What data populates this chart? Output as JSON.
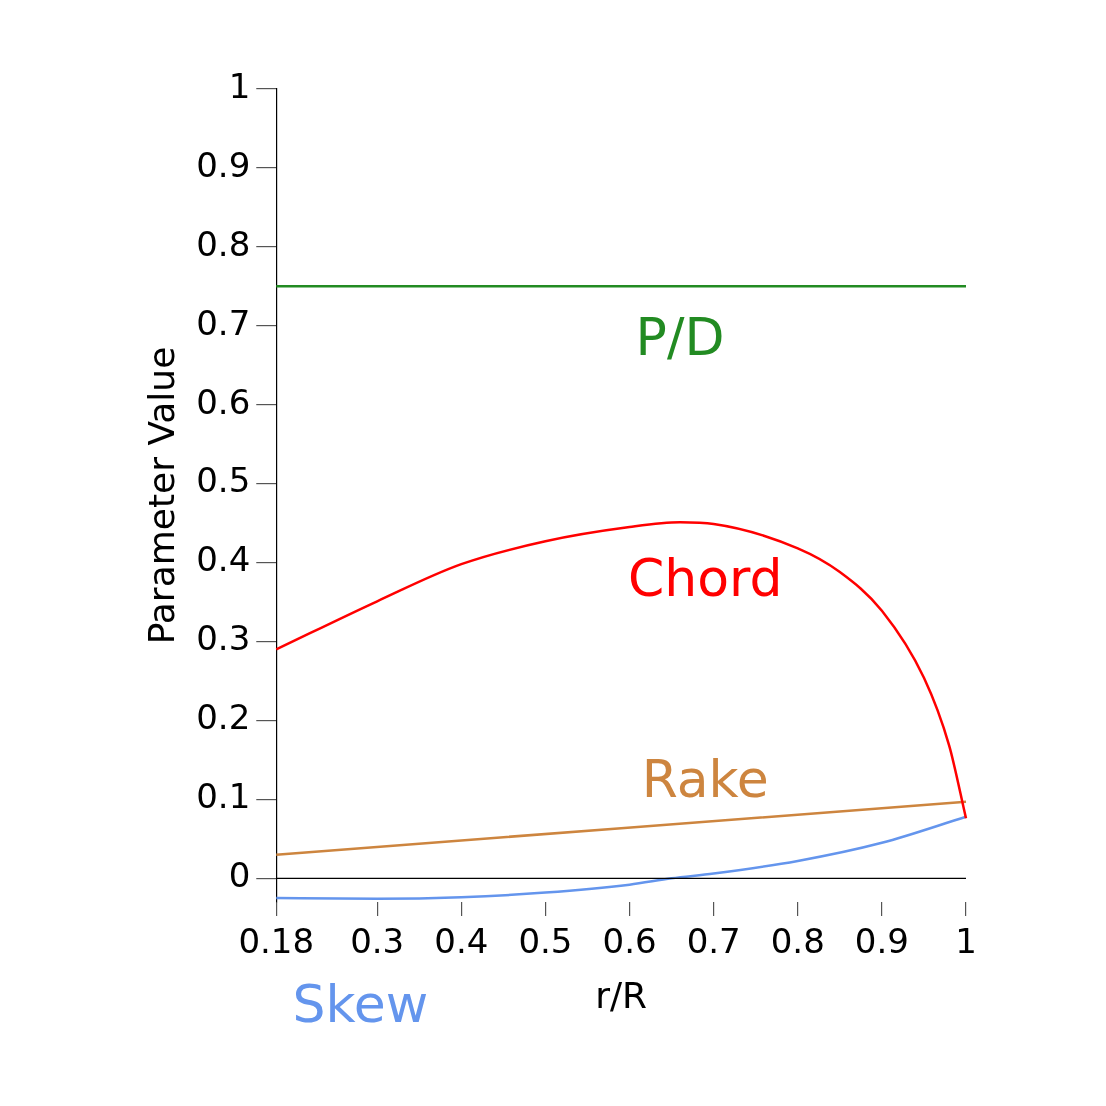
{
  "chart_data": {
    "type": "line",
    "xlabel": "r/R",
    "ylabel": "Parameter Value",
    "xlim": [
      0.18,
      1
    ],
    "xticks": [
      0.18,
      0.3,
      0.4,
      0.5,
      0.6,
      0.7,
      0.8,
      0.9,
      1
    ],
    "ylim": [
      -0.03,
      1
    ],
    "yticks": [
      0,
      0.1,
      0.2,
      0.3,
      0.4,
      0.5,
      0.6,
      0.7,
      0.8,
      0.9,
      1
    ],
    "grid": false,
    "legend": false,
    "marker": "none",
    "line_style": "solid",
    "series": [
      {
        "name": "P/D",
        "color": "#228b22",
        "x": [
          0.18,
          1
        ],
        "values": [
          0.75,
          0.75
        ]
      },
      {
        "name": "Chord",
        "color": "#ff0000",
        "x": [
          0.18,
          0.3,
          0.4,
          0.5,
          0.6,
          0.66,
          0.7,
          0.8,
          0.85,
          0.9,
          0.95,
          0.98,
          1
        ],
        "values": [
          0.29,
          0.351,
          0.398,
          0.427,
          0.445,
          0.451,
          0.449,
          0.418,
          0.388,
          0.339,
          0.254,
          0.168,
          0.076
        ]
      },
      {
        "name": "Rake",
        "color": "#cd853f",
        "x": [
          0.18,
          1
        ],
        "values": [
          0.03,
          0.097
        ]
      },
      {
        "name": "Skew",
        "color": "#6495ed",
        "x": [
          0.18,
          0.3,
          0.4,
          0.5,
          0.6,
          0.65,
          0.7,
          0.8,
          0.9,
          1
        ],
        "values": [
          -0.025,
          -0.026,
          -0.024,
          -0.018,
          -0.008,
          0,
          0.006,
          0.022,
          0.045,
          0.078
        ]
      }
    ]
  }
}
